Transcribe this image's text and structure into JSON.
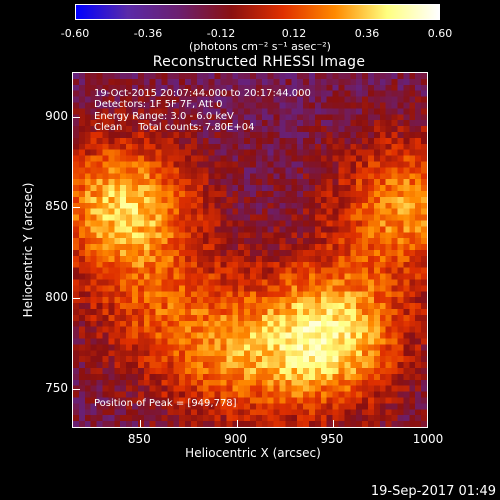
{
  "chart_data": {
    "type": "heatmap",
    "title": "Reconstructed RHESSI Image",
    "xlabel": "Heliocentric X (arcsec)",
    "ylabel": "Heliocentric Y (arcsec)",
    "xlim": [
      815,
      1000
    ],
    "ylim": [
      728,
      924
    ],
    "x_ticks": [
      "850",
      "900",
      "950",
      "1000"
    ],
    "y_ticks": [
      "900",
      "850",
      "800",
      "750"
    ],
    "colorbar": {
      "range": [
        -0.6,
        0.6
      ],
      "ticks": [
        "-0.60",
        "-0.36",
        "-0.12",
        "0.12",
        "0.36",
        "0.60"
      ],
      "unit": "(photons cm⁻² s⁻¹ asec⁻²)",
      "colormap": [
        "#0000ff",
        "#5a2aa8",
        "#6b1f6e",
        "#8a1010",
        "#e03000",
        "#ff8a00",
        "#ffff80",
        "#ffffff"
      ]
    },
    "annotations": [
      "19-Oct-2015 20:07:44.000 to 20:17:44.000",
      "Detectors: 1F 5F 7F, Att 0",
      "Energy Range: 3.0 - 6.0 keV",
      "Clean     Total counts: 7.80E+04"
    ],
    "peak_label": "Position of Peak = [949,778]",
    "peak": [
      949,
      778
    ],
    "sources": [
      {
        "x": 841,
        "y": 850,
        "intensity": 0.55
      },
      {
        "x": 949,
        "y": 778,
        "intensity": 0.6
      },
      {
        "x": 990,
        "y": 850,
        "intensity": 0.45
      },
      {
        "x": 900,
        "y": 765,
        "intensity": 0.3
      },
      {
        "x": 860,
        "y": 790,
        "intensity": 0.25
      }
    ],
    "background_level": -0.2
  },
  "footer": "19-Sep-2017 01:49"
}
